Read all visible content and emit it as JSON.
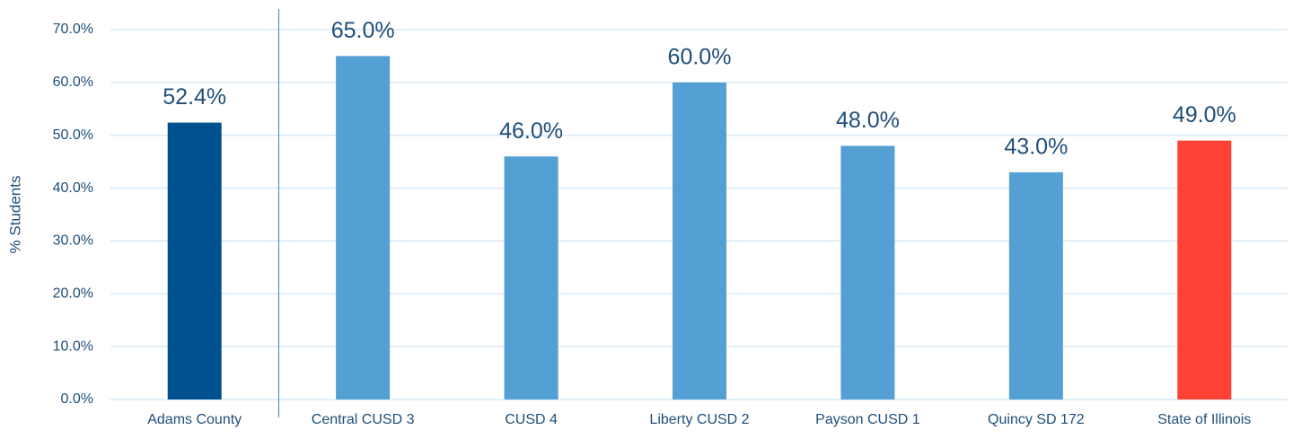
{
  "chart_data": {
    "type": "bar",
    "ylabel": "% Students",
    "categories": [
      "Adams County",
      "Central CUSD 3",
      "CUSD 4",
      "Liberty CUSD 2",
      "Payson CUSD 1",
      "Quincy SD 172",
      "State of Illinois"
    ],
    "values": [
      52.4,
      65.0,
      46.0,
      60.0,
      48.0,
      43.0,
      49.0
    ],
    "value_labels": [
      "52.4%",
      "65.0%",
      "46.0%",
      "60.0%",
      "48.0%",
      "43.0%",
      "49.0%"
    ],
    "colors": [
      "#00528f",
      "#549fd3",
      "#549fd3",
      "#549fd3",
      "#549fd3",
      "#549fd3",
      "#ff4136"
    ],
    "ylim": [
      0,
      70
    ],
    "yticks": [
      {
        "value": 0,
        "label": "0.0%"
      },
      {
        "value": 10,
        "label": "10.0%"
      },
      {
        "value": 20,
        "label": "20.0%"
      },
      {
        "value": 30,
        "label": "30.0%"
      },
      {
        "value": 40,
        "label": "40.0%"
      },
      {
        "value": 50,
        "label": "50.0%"
      },
      {
        "value": 60,
        "label": "60.0%"
      },
      {
        "value": 70,
        "label": "70.0%"
      }
    ],
    "grid": true
  }
}
